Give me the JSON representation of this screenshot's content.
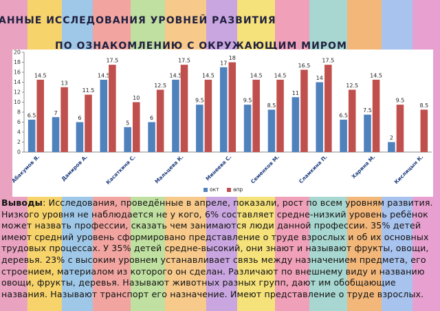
{
  "chart_data": {
    "type": "bar",
    "title": "АННЫЕ ИССЛЕДОВАНИЯ УРОВНЕЙ РАЗВИТИЯ",
    "subtitle": "ПО ОЗНАКОМЛЕНИЮ С ОКРУЖАЮЩИМ МИРОМ",
    "categories": [
      "Абакумов Я.",
      null,
      "Дамиров А.",
      null,
      "Касаткина С.",
      null,
      "Мальцева К.",
      null,
      "Минеева С.",
      null,
      "Семенков М.",
      null,
      "Сламкина П.",
      null,
      "Харина М.",
      null,
      "Кислицын К."
    ],
    "series": [
      {
        "name": "окт",
        "color": "#4f81bd",
        "values": [
          6.5,
          7,
          6,
          14.5,
          5,
          6,
          14.5,
          9.5,
          17,
          9.5,
          8.5,
          11,
          14,
          6.5,
          7.5,
          2,
          null
        ]
      },
      {
        "name": "апр",
        "color": "#c0504d",
        "values": [
          14.5,
          13,
          11.5,
          17.5,
          10,
          12.5,
          17.5,
          14.5,
          18,
          14.5,
          14.5,
          16.5,
          17.5,
          12.5,
          14.5,
          9.5,
          8.5
        ]
      }
    ],
    "ylim": [
      0,
      20
    ],
    "yticks": [
      0,
      2,
      4,
      6,
      8,
      10,
      12,
      14,
      16,
      18,
      20
    ],
    "grid": false,
    "legend": "bottom"
  },
  "conclusions_label": "Выводы",
  "conclusions_text": ": Исследования, проведённые в апреле, показали, рост по всем уровням развития. Низкого уровня не наблюдается не у кого, 6% составляет средне-низкий уровень ребёнок может назвать профессии, сказать чем занимаются люди данной профессии. 35% детей имеют средний уровень сформировано представление о труде взрослых и об их основных трудовых процессах. У 35% детей средне-высокий, они знают и называют фрукты, овощи, деревья. 23% с высоким уровнем устанавливает связь между назначением предмета, его строением, материалом из которого он сделан. Различают по внешнему виду и названию овощи, фрукты, деревья. Называют  животных разных групп, дают им обобщающие названия. Называют транспорт его назначение. Имеют представление о труде взрослых."
}
